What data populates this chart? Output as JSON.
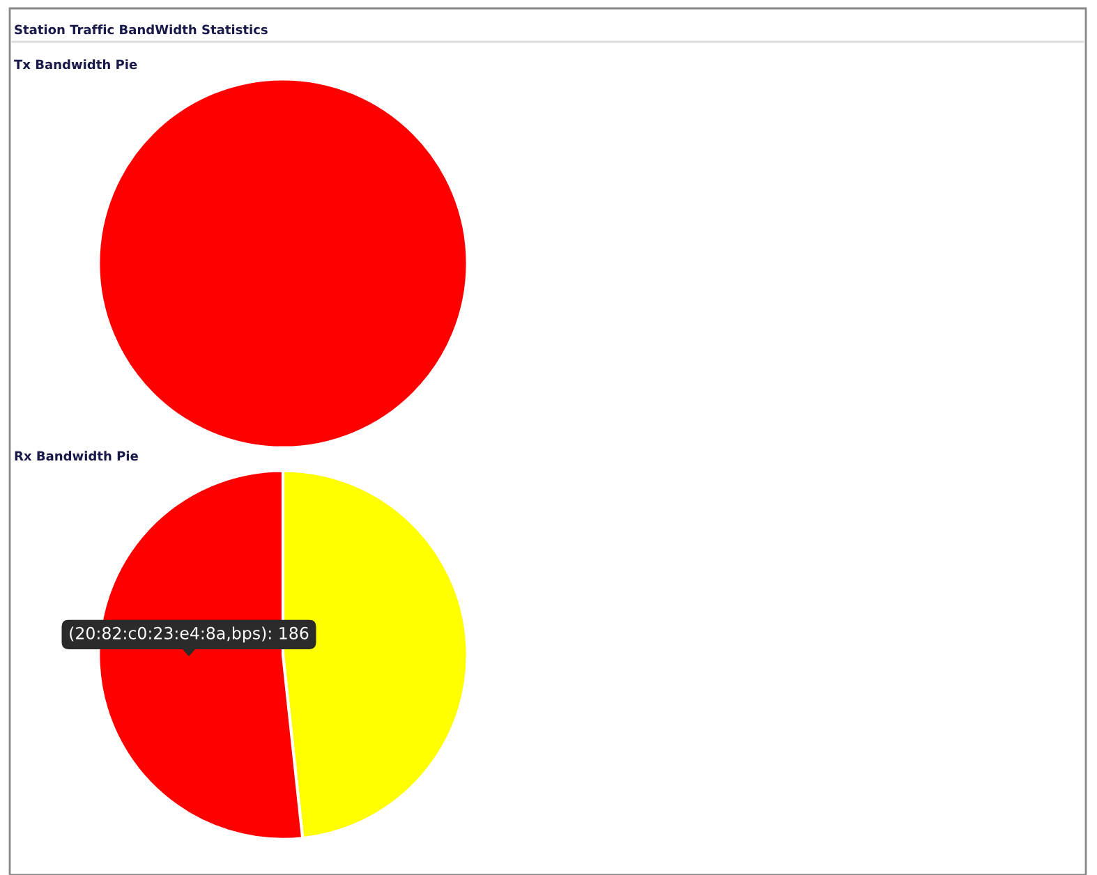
{
  "chart_data": [
    {
      "type": "pie",
      "title": "Station Traffic BandWidth Statistics",
      "subtitle": "Tx Bandwidth Pie",
      "categories": [
        null
      ],
      "values": [
        100
      ],
      "colors": [
        "#ff0000"
      ]
    },
    {
      "type": "pie",
      "title": "Rx Bandwidth Pie",
      "categories": [
        null,
        null
      ],
      "values": [
        48.3,
        51.7
      ],
      "colors": [
        "#ffff00",
        "#ff0000"
      ],
      "annotations": [
        "(20:82:c0:23:e4:8a,bps): 186"
      ]
    }
  ]
}
